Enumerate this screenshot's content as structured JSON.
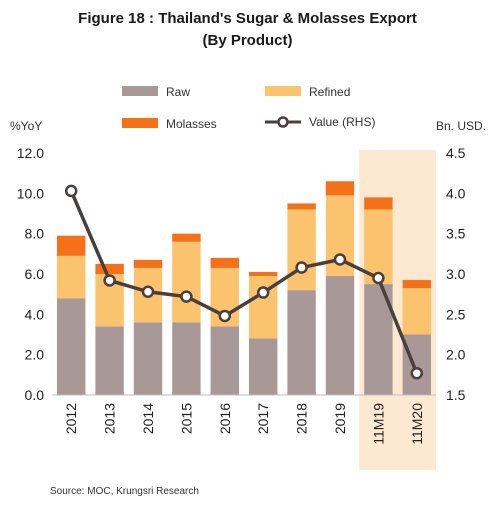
{
  "chart_data": {
    "type": "bar",
    "title": "Figure 18 : Thailand's Sugar & Molasses Export",
    "subtitle": "(By Product)",
    "categories": [
      "2012",
      "2013",
      "2014",
      "2015",
      "2016",
      "2017",
      "2018",
      "2019",
      "11M19",
      "11M20"
    ],
    "stacked": true,
    "series": [
      {
        "name": "Raw",
        "type": "bar",
        "axis": "left",
        "color": "#a89898",
        "values": [
          4.8,
          3.4,
          3.6,
          3.6,
          3.4,
          2.8,
          5.2,
          5.9,
          5.5,
          3.0
        ]
      },
      {
        "name": "Refined",
        "type": "bar",
        "axis": "left",
        "color": "#fbc36d",
        "values": [
          2.1,
          2.6,
          2.7,
          4.0,
          2.9,
          3.1,
          4.0,
          4.0,
          3.7,
          2.3
        ]
      },
      {
        "name": "Molasses",
        "type": "bar",
        "axis": "left",
        "color": "#f57119",
        "values": [
          1.0,
          0.5,
          0.4,
          0.4,
          0.5,
          0.2,
          0.3,
          0.7,
          0.6,
          0.4
        ]
      },
      {
        "name": "Value (RHS)",
        "type": "line",
        "axis": "right",
        "color": "#4a3f3d",
        "values": [
          4.03,
          2.92,
          2.78,
          2.72,
          2.48,
          2.77,
          3.08,
          3.18,
          2.95,
          1.77
        ]
      }
    ],
    "y_left": {
      "label": "%YoY",
      "min": 0,
      "max": 12,
      "step": 2,
      "ticks": [
        "0.0",
        "2.0",
        "4.0",
        "6.0",
        "8.0",
        "10.0",
        "12.0"
      ]
    },
    "y_right": {
      "label": "Bn. USD.",
      "min": 1.5,
      "max": 4.5,
      "step": 0.5,
      "ticks": [
        "1.5",
        "2.0",
        "2.5",
        "3.0",
        "3.5",
        "4.0",
        "4.5"
      ]
    },
    "highlight_categories": [
      "11M19",
      "11M20"
    ],
    "highlight_color": "#fde9d2",
    "grid": false,
    "legend": "top"
  },
  "source": "Source: MOC, Krungsri Research"
}
